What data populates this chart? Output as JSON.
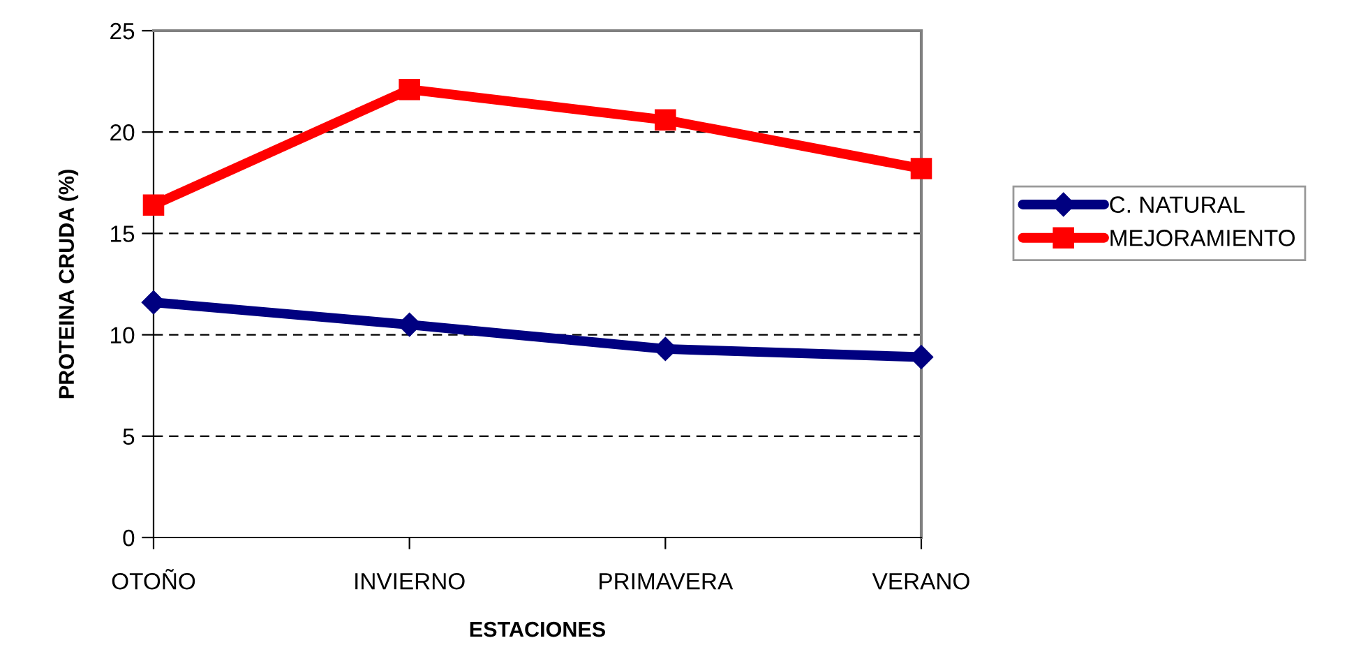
{
  "chart_data": {
    "type": "line",
    "xlabel": "ESTACIONES",
    "ylabel": "PROTEINA CRUDA (%)",
    "categories": [
      "OTOÑO",
      "INVIERNO",
      "PRIMAVERA",
      "VERANO"
    ],
    "series": [
      {
        "name": "C. NATURAL",
        "color": "#000080",
        "marker": "diamond",
        "values": [
          11.6,
          10.5,
          9.3,
          8.9
        ]
      },
      {
        "name": "MEJORAMIENTO",
        "color": "#ff0000",
        "marker": "square",
        "values": [
          16.4,
          22.1,
          20.6,
          18.2
        ]
      }
    ],
    "ylim": [
      0,
      25
    ],
    "yticks": [
      0,
      5,
      10,
      15,
      20,
      25
    ],
    "grid": "y",
    "legend": "right",
    "line_style": "solid"
  }
}
